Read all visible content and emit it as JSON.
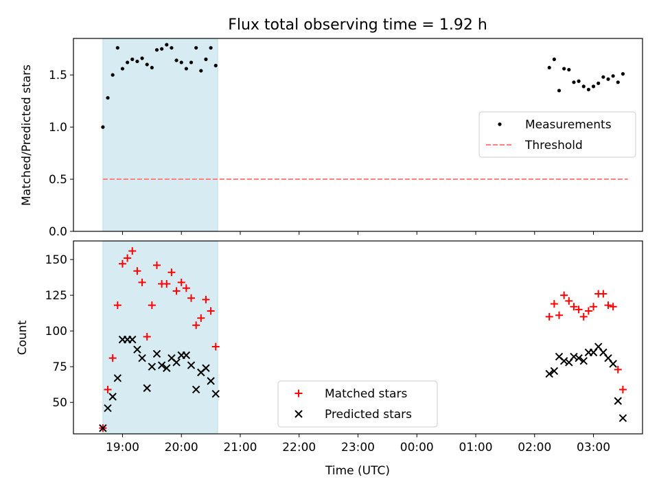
{
  "title": "Flux total observing time = 1.92 h",
  "colors": {
    "measurement": "#000000",
    "threshold": "#ff7f7f",
    "matched": "#ff0000",
    "predicted": "#000000",
    "highlight": "#add8e6"
  },
  "chart_data": [
    {
      "type": "scatter",
      "panel": "top",
      "ylabel": "Matched/Predicted stars",
      "ylim": [
        0,
        1.85
      ],
      "yticks": [
        0.0,
        0.5,
        1.0,
        1.5
      ],
      "ytick_labels": [
        "0.0",
        "0.5",
        "1.0",
        "1.5"
      ],
      "legend": {
        "placement": "center-right",
        "entries": [
          "Measurements",
          "Threshold"
        ]
      },
      "threshold": {
        "name": "Threshold",
        "y": 0.5,
        "x_start": "18:40",
        "x_end": "03:35"
      },
      "series": [
        {
          "name": "Measurements",
          "x": [
            "18:40",
            "18:45",
            "18:50",
            "18:55",
            "19:00",
            "19:05",
            "19:10",
            "19:15",
            "19:20",
            "19:25",
            "19:30",
            "19:35",
            "19:40",
            "19:45",
            "19:50",
            "19:55",
            "20:00",
            "20:05",
            "20:10",
            "20:15",
            "20:20",
            "20:25",
            "20:30",
            "20:35",
            "02:15",
            "02:20",
            "02:25",
            "02:30",
            "02:35",
            "02:40",
            "02:45",
            "02:50",
            "02:55",
            "03:00",
            "03:05",
            "03:10",
            "03:15",
            "03:20",
            "03:25",
            "03:30"
          ],
          "y": [
            1.0,
            1.28,
            1.5,
            1.76,
            1.56,
            1.62,
            1.65,
            1.63,
            1.66,
            1.6,
            1.57,
            1.74,
            1.75,
            1.79,
            1.76,
            1.64,
            1.62,
            1.56,
            1.62,
            1.76,
            1.54,
            1.65,
            1.76,
            1.59,
            1.57,
            1.65,
            1.35,
            1.56,
            1.55,
            1.43,
            1.44,
            1.39,
            1.36,
            1.39,
            1.42,
            1.48,
            1.46,
            1.49,
            1.43,
            1.51
          ]
        }
      ]
    },
    {
      "type": "scatter",
      "panel": "bottom",
      "xlabel": "Time (UTC)",
      "ylabel": "Count",
      "ylim": [
        28,
        163
      ],
      "yticks": [
        50,
        75,
        100,
        125,
        150
      ],
      "ytick_labels": [
        "50",
        "75",
        "100",
        "125",
        "150"
      ],
      "xticks": [
        "19:00",
        "20:00",
        "21:00",
        "22:00",
        "23:00",
        "00:00",
        "01:00",
        "02:00",
        "03:00"
      ],
      "legend": {
        "placement": "lower-center",
        "entries": [
          "Matched stars",
          "Predicted stars"
        ]
      },
      "series": [
        {
          "name": "Matched stars",
          "marker": "+",
          "x": [
            "18:40",
            "18:45",
            "18:50",
            "18:55",
            "19:00",
            "19:05",
            "19:10",
            "19:15",
            "19:20",
            "19:25",
            "19:30",
            "19:35",
            "19:40",
            "19:45",
            "19:50",
            "19:55",
            "20:00",
            "20:05",
            "20:10",
            "20:15",
            "20:20",
            "20:25",
            "20:30",
            "20:35",
            "02:15",
            "02:20",
            "02:25",
            "02:30",
            "02:35",
            "02:40",
            "02:45",
            "02:50",
            "02:55",
            "03:00",
            "03:05",
            "03:10",
            "03:15",
            "03:20",
            "03:25",
            "03:30"
          ],
          "y": [
            32,
            59,
            81,
            118,
            147,
            151,
            156,
            142,
            134,
            96,
            118,
            146,
            133,
            133,
            141,
            128,
            134,
            130,
            123,
            104,
            109,
            122,
            114,
            89,
            110,
            119,
            111,
            125,
            121,
            117,
            115,
            110,
            114,
            117,
            126,
            126,
            118,
            117,
            73,
            59
          ]
        },
        {
          "name": "Predicted stars",
          "marker": "x",
          "x": [
            "18:40",
            "18:45",
            "18:50",
            "18:55",
            "19:00",
            "19:05",
            "19:10",
            "19:15",
            "19:20",
            "19:25",
            "19:30",
            "19:35",
            "19:40",
            "19:45",
            "19:50",
            "19:55",
            "20:00",
            "20:05",
            "20:10",
            "20:15",
            "20:20",
            "20:25",
            "20:30",
            "20:35",
            "02:15",
            "02:20",
            "02:25",
            "02:30",
            "02:35",
            "02:40",
            "02:45",
            "02:50",
            "02:55",
            "03:00",
            "03:05",
            "03:10",
            "03:15",
            "03:20",
            "03:25",
            "03:30"
          ],
          "y": [
            32,
            46,
            54,
            67,
            94,
            94,
            94,
            87,
            81,
            60,
            75,
            84,
            76,
            74,
            81,
            78,
            83,
            83,
            76,
            59,
            71,
            74,
            65,
            56,
            70,
            72,
            82,
            79,
            78,
            82,
            81,
            79,
            85,
            85,
            89,
            85,
            81,
            77,
            51,
            39
          ]
        }
      ]
    }
  ],
  "highlight_span": {
    "x_start": "18:40",
    "x_end": "20:37"
  }
}
